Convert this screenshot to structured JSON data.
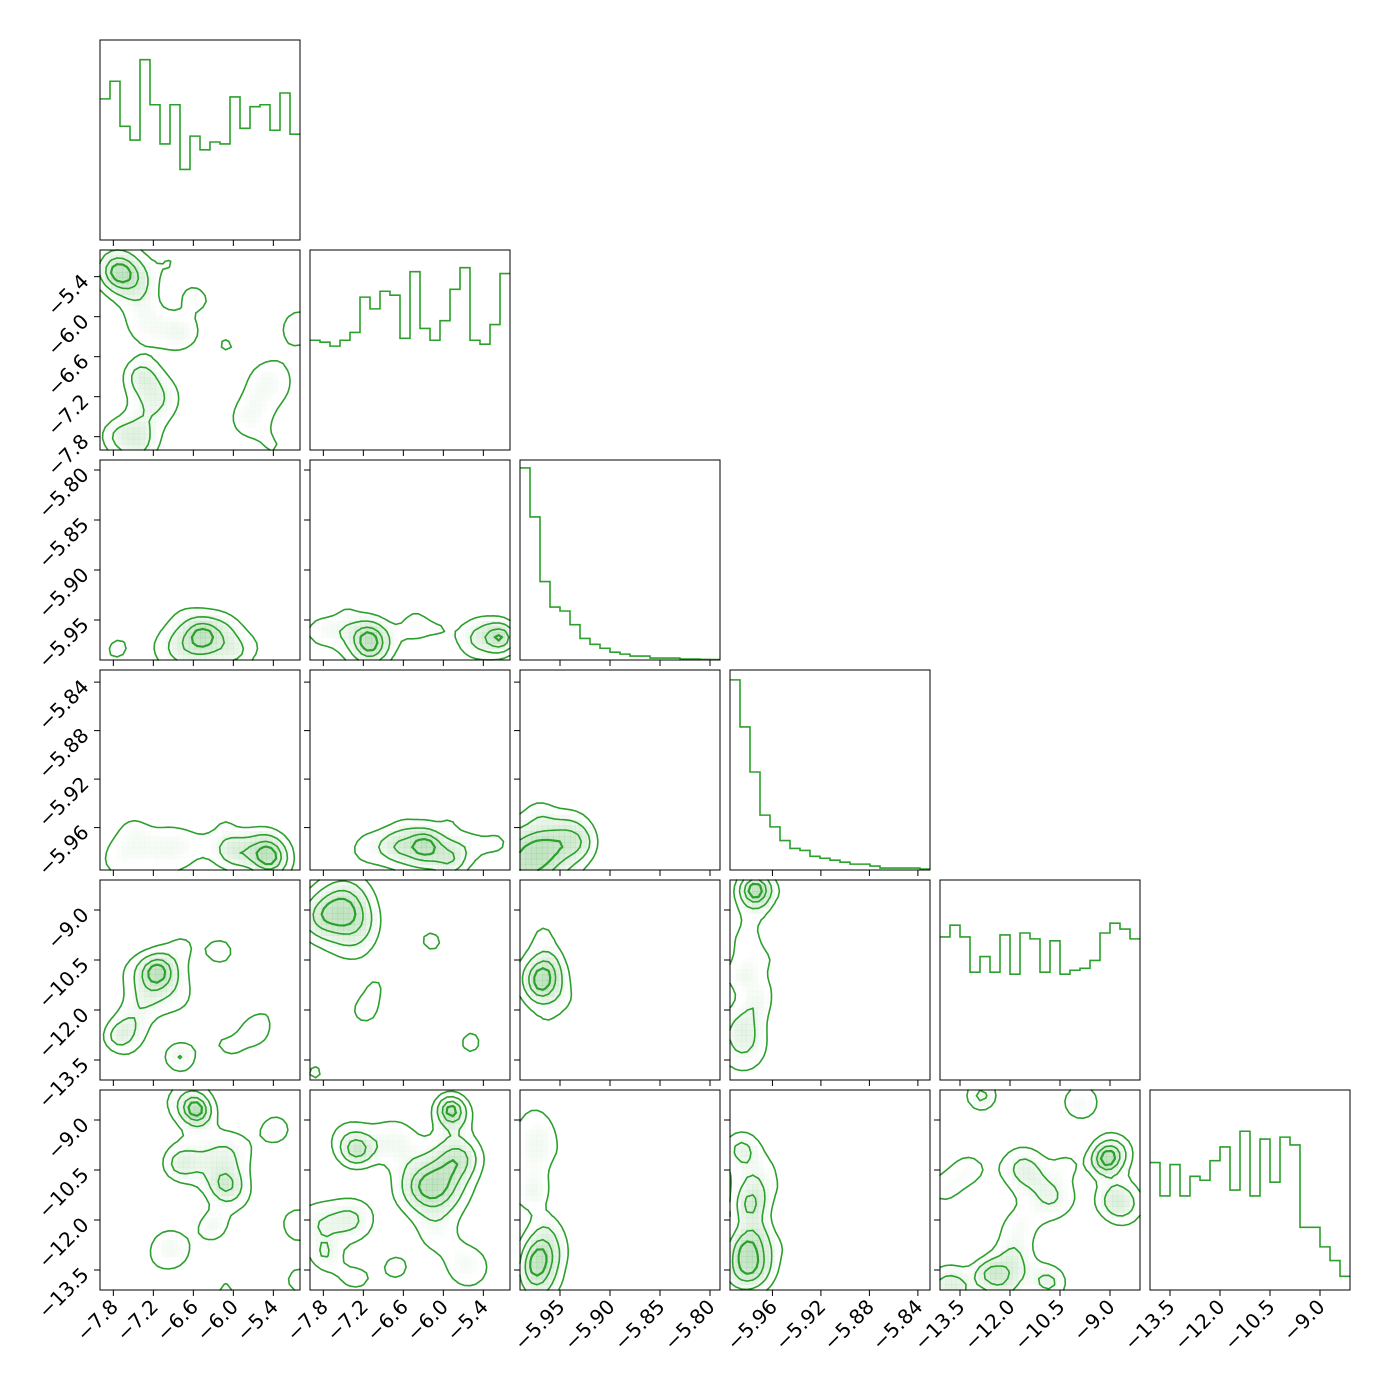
{
  "colors": {
    "line": "#2ca02c"
  },
  "chart_data": {
    "type": "corner",
    "n_params": 6,
    "panel_layout": "lower-triangle",
    "axis_ticks": [
      {
        "ticks": [
          -7.8,
          -7.2,
          -6.6,
          -6.0,
          -5.4
        ],
        "labels": [
          "−7.8",
          "−7.2",
          "−6.6",
          "−6.0",
          "−5.4"
        ]
      },
      {
        "ticks": [
          -7.8,
          -7.2,
          -6.6,
          -6.0,
          -5.4
        ],
        "labels": [
          "−7.8",
          "−7.2",
          "−6.6",
          "−6.0",
          "−5.4"
        ]
      },
      {
        "ticks": [
          -5.95,
          -5.9,
          -5.85,
          -5.8
        ],
        "labels": [
          "−5.95",
          "−5.90",
          "−5.85",
          "−5.80"
        ]
      },
      {
        "ticks": [
          -5.96,
          -5.92,
          -5.88,
          -5.84
        ],
        "labels": [
          "−5.96",
          "−5.92",
          "−5.88",
          "−5.84"
        ]
      },
      {
        "ticks": [
          -13.5,
          -12.0,
          -10.5,
          -9.0
        ],
        "labels": [
          "−13.5",
          "−12.0",
          "−10.5",
          "−9.0"
        ]
      },
      {
        "ticks": [
          -13.5,
          -12.0,
          -10.5,
          -9.0
        ],
        "labels": [
          "−13.5",
          "−12.0",
          "−10.5",
          "−9.0"
        ]
      }
    ],
    "axis_ranges": [
      [
        -8.0,
        -5.0
      ],
      [
        -8.0,
        -5.0
      ],
      [
        -5.99,
        -5.79
      ],
      [
        -5.995,
        -5.83
      ],
      [
        -14.1,
        -8.1
      ],
      [
        -14.1,
        -8.1
      ]
    ],
    "histograms": [
      {
        "param": 0,
        "bins": 20,
        "counts": [
          0.72,
          0.81,
          0.58,
          0.51,
          0.92,
          0.69,
          0.49,
          0.69,
          0.36,
          0.53,
          0.46,
          0.5,
          0.49,
          0.73,
          0.57,
          0.68,
          0.69,
          0.56,
          0.75,
          0.54
        ]
      },
      {
        "param": 1,
        "bins": 20,
        "counts": [
          0.56,
          0.55,
          0.53,
          0.56,
          0.6,
          0.78,
          0.72,
          0.81,
          0.79,
          0.57,
          0.91,
          0.62,
          0.56,
          0.66,
          0.82,
          0.93,
          0.56,
          0.54,
          0.64,
          0.9
        ]
      },
      {
        "param": 2,
        "bins": 20,
        "counts": [
          0.98,
          0.73,
          0.4,
          0.27,
          0.25,
          0.18,
          0.11,
          0.08,
          0.06,
          0.04,
          0.03,
          0.02,
          0.02,
          0.01,
          0.01,
          0.01,
          0.005,
          0.005,
          0.003,
          0.002
        ]
      },
      {
        "param": 3,
        "bins": 20,
        "counts": [
          0.97,
          0.73,
          0.5,
          0.28,
          0.22,
          0.15,
          0.11,
          0.1,
          0.07,
          0.06,
          0.05,
          0.04,
          0.03,
          0.03,
          0.02,
          0.01,
          0.01,
          0.01,
          0.01,
          0.005
        ]
      },
      {
        "param": 4,
        "bins": 20,
        "counts": [
          0.73,
          0.79,
          0.73,
          0.55,
          0.63,
          0.55,
          0.74,
          0.54,
          0.75,
          0.72,
          0.55,
          0.71,
          0.54,
          0.56,
          0.57,
          0.61,
          0.75,
          0.8,
          0.77,
          0.72
        ]
      },
      {
        "param": 5,
        "bins": 20,
        "counts": [
          0.65,
          0.48,
          0.64,
          0.48,
          0.58,
          0.56,
          0.66,
          0.73,
          0.51,
          0.81,
          0.48,
          0.77,
          0.55,
          0.78,
          0.74,
          0.32,
          0.32,
          0.22,
          0.15,
          0.07
        ]
      }
    ],
    "pairs_2d": [
      {
        "x": 0,
        "y": 1,
        "structure": "multimodal-noise"
      },
      {
        "x": 0,
        "y": 2,
        "structure": "concentrated-low-y"
      },
      {
        "x": 1,
        "y": 2,
        "structure": "concentrated-low-y"
      },
      {
        "x": 2,
        "y": 3,
        "structure": "concentrated-corner"
      },
      {
        "x": 0,
        "y": 3,
        "structure": "concentrated-low-y"
      },
      {
        "x": 1,
        "y": 3,
        "structure": "concentrated-low-y"
      },
      {
        "x": 0,
        "y": 4,
        "structure": "multimodal-noise"
      },
      {
        "x": 1,
        "y": 4,
        "structure": "multimodal-noise"
      },
      {
        "x": 2,
        "y": 4,
        "structure": "concentrated-low-x"
      },
      {
        "x": 3,
        "y": 4,
        "structure": "concentrated-low-x"
      },
      {
        "x": 0,
        "y": 5,
        "structure": "multimodal-noise"
      },
      {
        "x": 1,
        "y": 5,
        "structure": "multimodal-noise"
      },
      {
        "x": 2,
        "y": 5,
        "structure": "concentrated-low-x"
      },
      {
        "x": 3,
        "y": 5,
        "structure": "concentrated-low-x"
      },
      {
        "x": 4,
        "y": 5,
        "structure": "multimodal-noise"
      }
    ],
    "grid": false,
    "legend": "none"
  }
}
